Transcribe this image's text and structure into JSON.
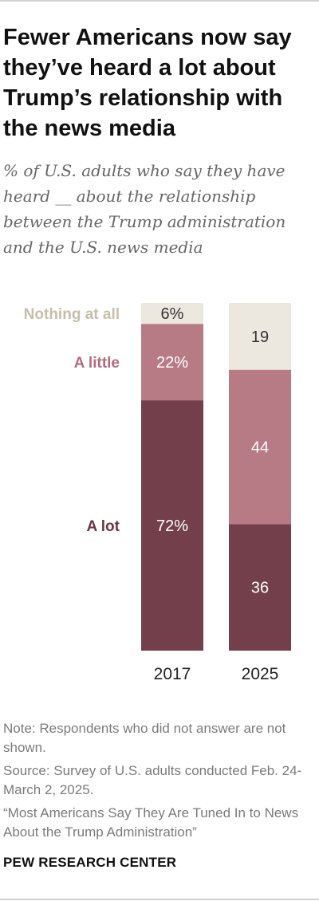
{
  "header": {
    "title": "Fewer Americans now say they’ve heard a lot about Trump’s relationship with the news media",
    "subtitle": "% of U.S. adults who say they have heard __ about the relationship between the Trump administration and the U.S. news media"
  },
  "footer": {
    "note": "Note: Respondents who did not answer are not shown.",
    "source": "Source: Survey of U.S. adults conducted Feb. 24-March 2, 2025.",
    "report": "“Most Americans Say They Are Tuned In to News About the Trump Administration”",
    "brand": "PEW RESEARCH CENTER"
  },
  "colors": {
    "a_lot": "#733f4b",
    "a_little": "#b77b86",
    "nothing_at_all": "#ece8e0",
    "label_nothing": "#c7bfa8",
    "label_little": "#b36c7a",
    "label_lot": "#6e3642"
  },
  "chart_data": {
    "type": "bar",
    "stacked": true,
    "orientation": "vertical",
    "categories": [
      "2017",
      "2025"
    ],
    "series": [
      {
        "name": "A lot",
        "values": [
          72,
          36
        ],
        "labels": [
          "72%",
          "36"
        ]
      },
      {
        "name": "A little",
        "values": [
          22,
          44
        ],
        "labels": [
          "22%",
          "44"
        ]
      },
      {
        "name": "Nothing at all",
        "values": [
          6,
          19
        ],
        "labels": [
          "6%",
          "19"
        ]
      }
    ],
    "legend": "left, aligned with 2017 bar segments",
    "ylim": [
      0,
      100
    ],
    "grid": false
  }
}
